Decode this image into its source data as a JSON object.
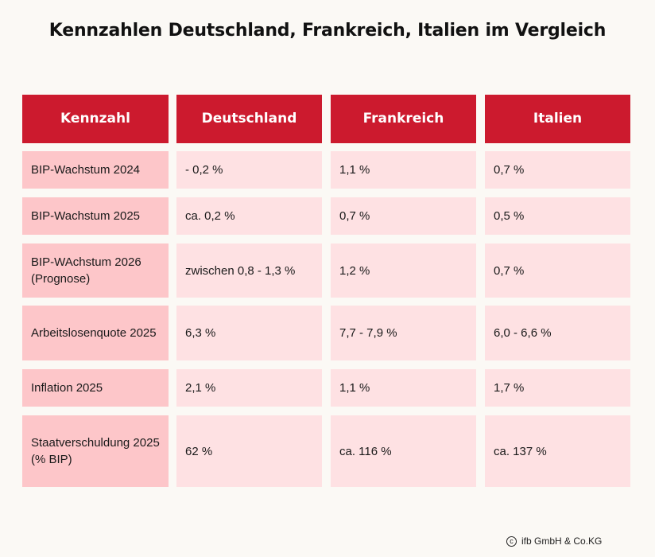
{
  "title": "Kennzahlen Deutschland, Frankreich, Italien im Vergleich",
  "table": {
    "headers": [
      "Kennzahl",
      "Deutschland",
      "Frankreich",
      "Italien"
    ],
    "rows": [
      {
        "label": "BIP-Wachstum 2024",
        "de": "- 0,2 %",
        "fr": "1,1 %",
        "it": "0,7 %"
      },
      {
        "label": "BIP-Wachstum 2025",
        "de": "ca. 0,2 %",
        "fr": "0,7 %",
        "it": "0,5 %"
      },
      {
        "label": "BIP-WAchstum 2026 (Prognose)",
        "de": "zwischen 0,8 - 1,3 %",
        "fr": "1,2 %",
        "it": "0,7 %"
      },
      {
        "label": "Arbeitslosenquote 2025",
        "de": "6,3 %",
        "fr": "7,7 - 7,9 %",
        "it": "6,0 - 6,6 %"
      },
      {
        "label": "Inflation 2025",
        "de": "2,1 %",
        "fr": "1,1 %",
        "it": "1,7 %"
      },
      {
        "label": "Staatverschuldung 2025 (% BIP)",
        "de": "62 %",
        "fr": "ca. 116 %",
        "it": "ca. 137 %"
      }
    ]
  },
  "footer": {
    "copyright_icon": "copyright-icon",
    "copyright_text": "ifb GmbH & Co.KG"
  },
  "colors": {
    "header_bg": "#cc1a2e",
    "label_bg": "#fdc6c9",
    "value_bg": "#fee1e3",
    "page_bg": "#fbf9f5"
  }
}
